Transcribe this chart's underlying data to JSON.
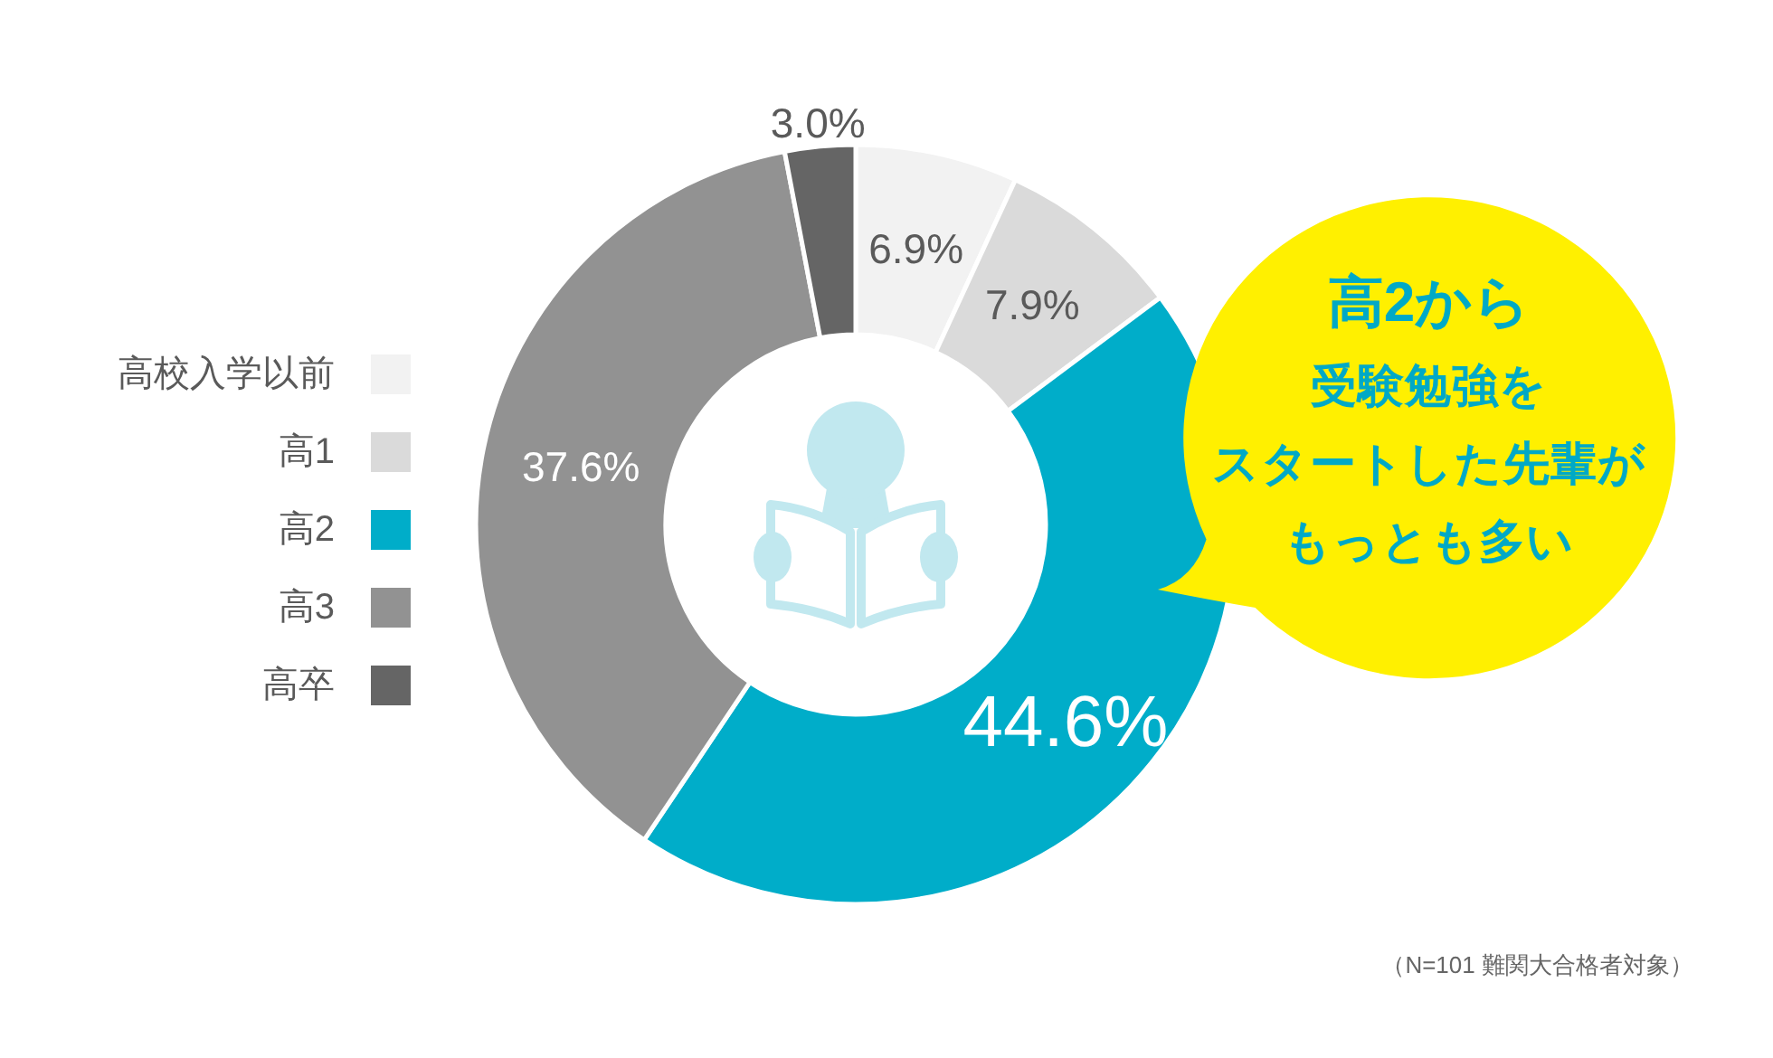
{
  "chart_data": {
    "type": "donut",
    "categories": [
      "高校入学以前",
      "高1",
      "高2",
      "高3",
      "高卒"
    ],
    "values": [
      6.9,
      7.9,
      44.6,
      37.6,
      3.0
    ],
    "colors": [
      "#f2f2f2",
      "#dadada",
      "#00adc9",
      "#929292",
      "#656565"
    ],
    "value_labels": [
      "6.9%",
      "7.9%",
      "44.6%",
      "37.6%",
      "3.0%"
    ],
    "legend": "left",
    "annotations": [
      "高2から",
      "受験勉強を",
      "スタートした先輩が",
      "もっとも多い",
      "（N=101 難関大合格者対象）"
    ]
  }
}
